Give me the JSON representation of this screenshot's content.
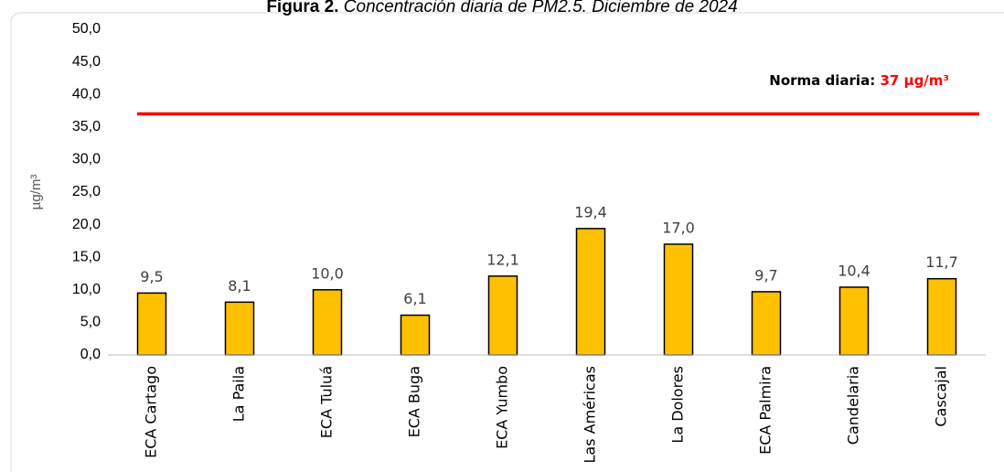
{
  "chart_data": {
    "type": "bar",
    "title_label": "Figura 2.",
    "title": "Concentración diaria de PM2.5. Diciembre de 2024",
    "y_label": "µg/m³",
    "categories": [
      "ECA Cartago",
      "La Paila",
      "ECA Tuluá",
      "ECA Buga",
      "ECA Yumbo",
      "Las Américas",
      "La Dolores",
      "ECA Palmira",
      "Candelaria",
      "Cascajal"
    ],
    "values": [
      9.5,
      8.1,
      10.0,
      6.1,
      12.1,
      19.4,
      17.0,
      9.7,
      10.4,
      11.7
    ],
    "value_labels": [
      "9,5",
      "8,1",
      "10,0",
      "6,1",
      "12,1",
      "19,4",
      "17,0",
      "9,7",
      "10,4",
      "11,7"
    ],
    "color": "#ffc000",
    "ylim": [
      0,
      50
    ],
    "yticks": [
      {
        "value": 0,
        "label": "0,0"
      },
      {
        "value": 5,
        "label": "5,0"
      },
      {
        "value": 10,
        "label": "10,0"
      },
      {
        "value": 15,
        "label": "15,0"
      },
      {
        "value": 20,
        "label": "20,0"
      },
      {
        "value": 25,
        "label": "25,0"
      },
      {
        "value": 30,
        "label": "30,0"
      },
      {
        "value": 35,
        "label": "35,0"
      },
      {
        "value": 40,
        "label": "40,0"
      },
      {
        "value": 45,
        "label": "45,0"
      },
      {
        "value": 50,
        "label": "50,0"
      }
    ],
    "grid": false,
    "reference_line": {
      "value": 37,
      "label_prefix": "Norma diaria:",
      "label": "37 µg/m³",
      "color": "#ff0000"
    }
  }
}
